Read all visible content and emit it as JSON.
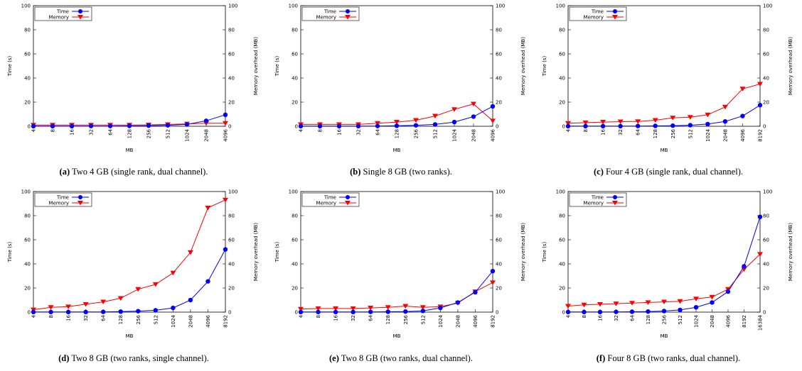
{
  "chart_data": [
    {
      "type": "line",
      "caption_label": "(a)",
      "caption": "Two 4 GB (single rank, dual channel).",
      "xlabel": "MB",
      "ylabel": "Time (s)",
      "y2label": "Memory overhead (MB)",
      "categories": [
        "4",
        "8",
        "16",
        "32",
        "64",
        "128",
        "256",
        "512",
        "1024",
        "2048",
        "4096"
      ],
      "ylim": [
        0,
        100
      ],
      "y2lim": [
        0,
        100
      ],
      "yticks": [
        0,
        20,
        40,
        60,
        80,
        100
      ],
      "y2ticks": [
        0,
        20,
        40,
        60,
        80,
        100
      ],
      "legend_position": "top-left",
      "grid": false,
      "series": [
        {
          "name": "Time",
          "axis": "left",
          "color": "#0000ff",
          "marker": "circle",
          "values": [
            0.1,
            0.1,
            0.1,
            0.2,
            0.2,
            0.3,
            0.5,
            0.8,
            1.5,
            4.5,
            9.5
          ]
        },
        {
          "name": "Memory",
          "axis": "right",
          "color": "#ff0000",
          "marker": "triangle-down",
          "values": [
            1,
            1,
            1,
            1,
            1,
            1,
            1.2,
            1.5,
            2,
            2.5,
            2.5
          ]
        }
      ]
    },
    {
      "type": "line",
      "caption_label": "(b)",
      "caption": "Single 8 GB (two ranks).",
      "xlabel": "MB",
      "ylabel": "Time (s)",
      "y2label": "Memory overhead (MB)",
      "categories": [
        "4",
        "8",
        "16",
        "32",
        "64",
        "128",
        "256",
        "512",
        "1024",
        "2048",
        "4096"
      ],
      "ylim": [
        0,
        100
      ],
      "y2lim": [
        0,
        100
      ],
      "yticks": [
        0,
        20,
        40,
        60,
        80,
        100
      ],
      "y2ticks": [
        0,
        20,
        40,
        60,
        80,
        100
      ],
      "legend_position": "top-left",
      "grid": false,
      "series": [
        {
          "name": "Time",
          "axis": "left",
          "color": "#0000ff",
          "marker": "circle",
          "values": [
            0.1,
            0.1,
            0.1,
            0.1,
            0.2,
            0.4,
            0.8,
            1.5,
            3.5,
            8,
            16.5
          ]
        },
        {
          "name": "Memory",
          "axis": "right",
          "color": "#ff0000",
          "marker": "triangle-down",
          "values": [
            1.5,
            1.5,
            1.5,
            1.5,
            2.5,
            3.5,
            5,
            8.5,
            14,
            18.5,
            4.5
          ]
        }
      ]
    },
    {
      "type": "line",
      "caption_label": "(c)",
      "caption": "Four 4 GB (single rank, dual channel).",
      "xlabel": "MB",
      "ylabel": "Time (s)",
      "y2label": "Memory overhead (MB)",
      "categories": [
        "4",
        "8",
        "16",
        "32",
        "64",
        "128",
        "256",
        "512",
        "1024",
        "2048",
        "4096",
        "8192"
      ],
      "ylim": [
        0,
        100
      ],
      "y2lim": [
        0,
        100
      ],
      "yticks": [
        0,
        20,
        40,
        60,
        80,
        100
      ],
      "y2ticks": [
        0,
        20,
        40,
        60,
        80,
        100
      ],
      "legend_position": "top-left",
      "grid": false,
      "series": [
        {
          "name": "Time",
          "axis": "left",
          "color": "#0000ff",
          "marker": "circle",
          "values": [
            0.1,
            0.1,
            0.1,
            0.1,
            0.2,
            0.3,
            0.5,
            0.9,
            1.8,
            4,
            8.5,
            17.5
          ]
        },
        {
          "name": "Memory",
          "axis": "right",
          "color": "#ff0000",
          "marker": "triangle-down",
          "values": [
            2.5,
            3,
            3.5,
            3.8,
            4,
            5,
            7,
            7.5,
            9.5,
            16,
            31,
            35
          ]
        }
      ]
    },
    {
      "type": "line",
      "caption_label": "(d)",
      "caption": "Two 8 GB (two ranks, single channel).",
      "xlabel": "MB",
      "ylabel": "Time (s)",
      "y2label": "Memory overhead (MB)",
      "categories": [
        "4",
        "8",
        "16",
        "32",
        "64",
        "128",
        "256",
        "512",
        "1024",
        "2048",
        "4096",
        "8192"
      ],
      "ylim": [
        0,
        100
      ],
      "y2lim": [
        0,
        100
      ],
      "yticks": [
        0,
        20,
        40,
        60,
        80,
        100
      ],
      "y2ticks": [
        0,
        20,
        40,
        60,
        80,
        100
      ],
      "legend_position": "top-left",
      "grid": false,
      "series": [
        {
          "name": "Time",
          "axis": "left",
          "color": "#0000ff",
          "marker": "circle",
          "values": [
            0.1,
            0.1,
            0.1,
            0.1,
            0.2,
            0.4,
            0.8,
            1.5,
            3.5,
            10,
            25.5,
            52
          ]
        },
        {
          "name": "Memory",
          "axis": "right",
          "color": "#ff0000",
          "marker": "triangle-down",
          "values": [
            2,
            4,
            4.5,
            6.5,
            8.5,
            11.5,
            19,
            23,
            32.5,
            49.5,
            86.5,
            93
          ]
        }
      ]
    },
    {
      "type": "line",
      "caption_label": "(e)",
      "caption": "Two 8 GB (two ranks, dual channel).",
      "xlabel": "MB",
      "ylabel": "Time (s)",
      "y2label": "Memory overhead (MB)",
      "categories": [
        "4",
        "8",
        "16",
        "32",
        "64",
        "128",
        "256",
        "512",
        "1024",
        "2048",
        "4096",
        "8192"
      ],
      "ylim": [
        0,
        100
      ],
      "y2lim": [
        0,
        100
      ],
      "yticks": [
        0,
        20,
        40,
        60,
        80,
        100
      ],
      "y2ticks": [
        0,
        20,
        40,
        60,
        80,
        100
      ],
      "legend_position": "top-left",
      "grid": false,
      "series": [
        {
          "name": "Time",
          "axis": "left",
          "color": "#0000ff",
          "marker": "circle",
          "values": [
            0.1,
            0.1,
            0.1,
            0.1,
            0.2,
            0.3,
            0.5,
            1,
            3.5,
            8,
            16.5,
            34
          ]
        },
        {
          "name": "Memory",
          "axis": "right",
          "color": "#ff0000",
          "marker": "triangle-down",
          "values": [
            2.5,
            3,
            3,
            3,
            3.5,
            4,
            5,
            4,
            4.5,
            7.5,
            17,
            24.5
          ]
        }
      ]
    },
    {
      "type": "line",
      "caption_label": "(f)",
      "caption": "Four 8 GB (two ranks, dual channel).",
      "xlabel": "MB",
      "ylabel": "Time (s)",
      "y2label": "Memory overhead (MB)",
      "categories": [
        "4",
        "8",
        "16",
        "32",
        "64",
        "128",
        "256",
        "512",
        "1024",
        "2048",
        "4096",
        "8192",
        "16384"
      ],
      "ylim": [
        0,
        100
      ],
      "y2lim": [
        0,
        100
      ],
      "yticks": [
        0,
        20,
        40,
        60,
        80,
        100
      ],
      "y2ticks": [
        0,
        20,
        40,
        60,
        80,
        100
      ],
      "legend_position": "top-left",
      "grid": false,
      "series": [
        {
          "name": "Time",
          "axis": "left",
          "color": "#0000ff",
          "marker": "circle",
          "values": [
            0.1,
            0.1,
            0.1,
            0.2,
            0.3,
            0.5,
            0.9,
            1.8,
            4,
            8,
            17,
            38,
            79
          ]
        },
        {
          "name": "Memory",
          "axis": "right",
          "color": "#ff0000",
          "marker": "triangle-down",
          "values": [
            5,
            6,
            6.5,
            7,
            7.5,
            8,
            8.5,
            9,
            11,
            12.5,
            19,
            35.5,
            48
          ]
        }
      ]
    }
  ]
}
